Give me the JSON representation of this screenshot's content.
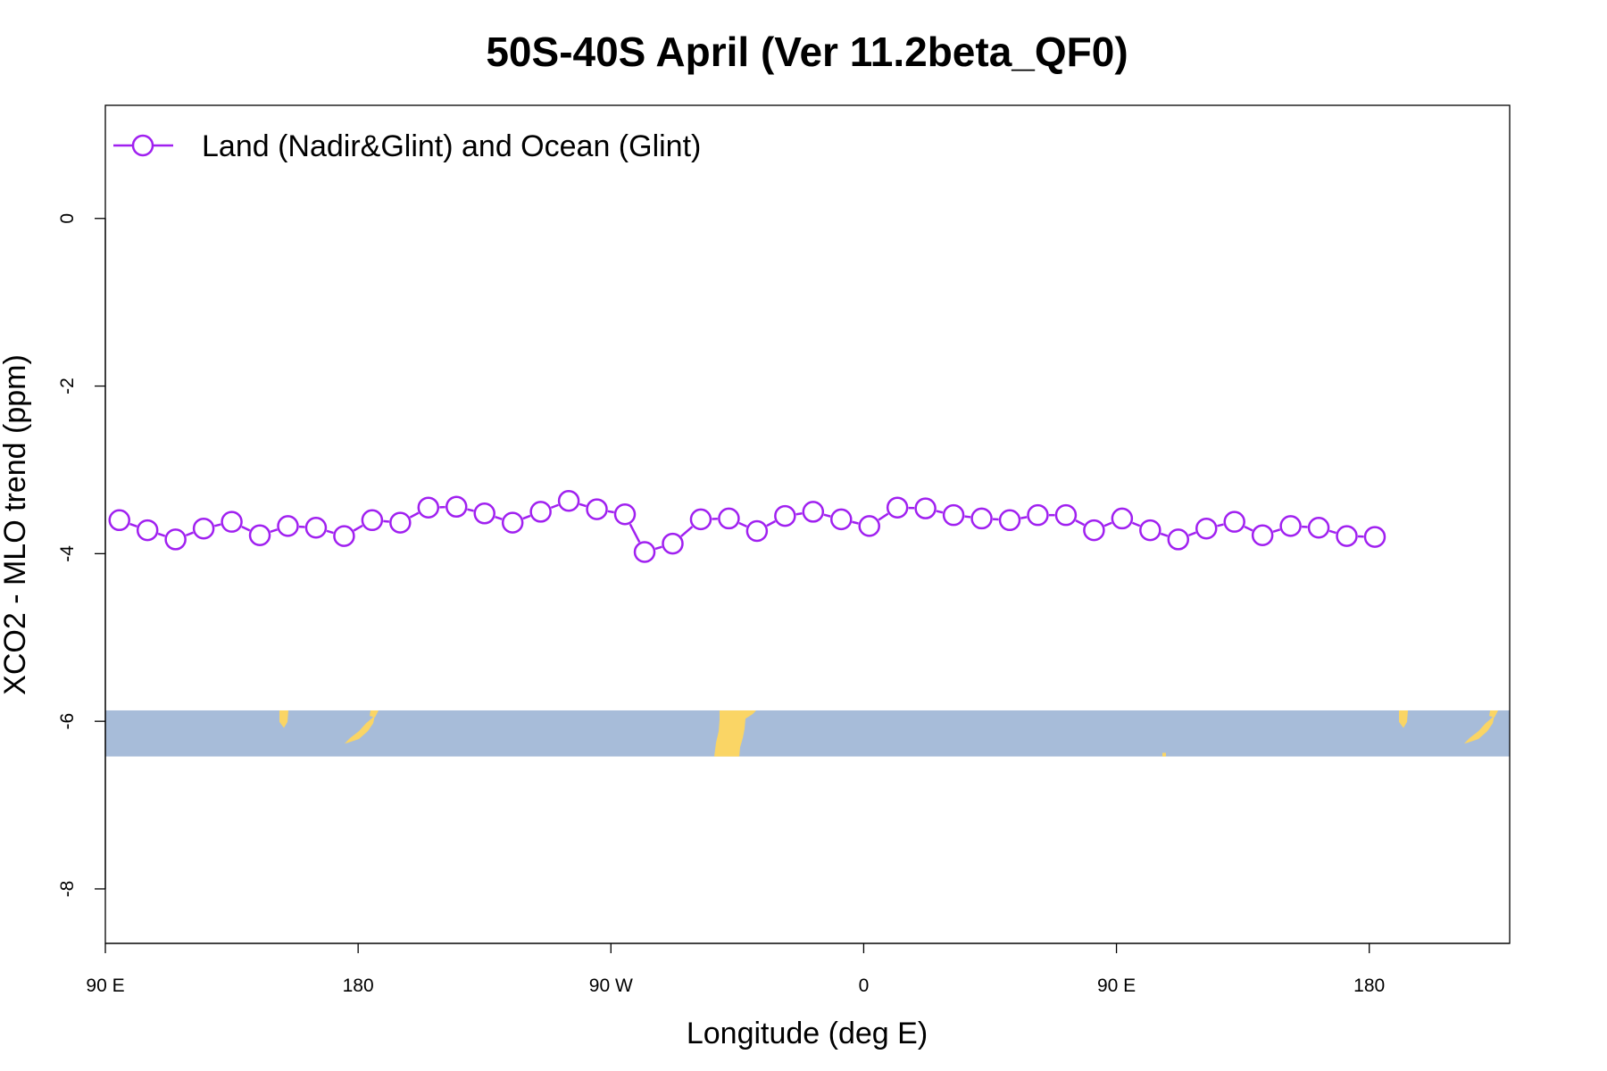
{
  "chart_data": {
    "type": "line",
    "title": "50S-40S April (Ver 11.2beta_QF0)",
    "xlabel": "Longitude (deg E)",
    "ylabel": "XCO2 - MLO trend (ppm)",
    "xlim": [
      90,
      590
    ],
    "ylim": [
      -8.65,
      1.35
    ],
    "x_ticks": [
      {
        "value": 90,
        "label": "90 E"
      },
      {
        "value": 180,
        "label": "180"
      },
      {
        "value": 270,
        "label": "90 W"
      },
      {
        "value": 360,
        "label": "0"
      },
      {
        "value": 450,
        "label": "90 E"
      },
      {
        "value": 540,
        "label": "180"
      }
    ],
    "y_ticks": [
      {
        "value": 0,
        "label": "0"
      },
      {
        "value": -2,
        "label": "-2"
      },
      {
        "value": -4,
        "label": "-4"
      },
      {
        "value": -6,
        "label": "-6"
      },
      {
        "value": -8,
        "label": "-8"
      }
    ],
    "grid": false,
    "legend_position": "top-left",
    "series": [
      {
        "name": "Land (Nadir&Glint) and Ocean (Glint)",
        "color": "#a020f0",
        "marker": "open-circle",
        "x": [
          95,
          105,
          115,
          125,
          135,
          145,
          155,
          165,
          175,
          185,
          195,
          205,
          215,
          225,
          235,
          245,
          255,
          265,
          275,
          282,
          292,
          302,
          312,
          322,
          332,
          342,
          352,
          362,
          372,
          382,
          392,
          402,
          412,
          422,
          432,
          442,
          452,
          462,
          472,
          482,
          492,
          502,
          512,
          522,
          532,
          542
        ],
        "y": [
          -3.6,
          -3.72,
          -3.83,
          -3.7,
          -3.62,
          -3.78,
          -3.67,
          -3.69,
          -3.79,
          -3.6,
          -3.63,
          -3.45,
          -3.44,
          -3.52,
          -3.63,
          -3.5,
          -3.37,
          -3.47,
          -3.53,
          -3.98,
          -3.88,
          -3.59,
          -3.58,
          -3.73,
          -3.55,
          -3.5,
          -3.59,
          -3.67,
          -3.45,
          -3.46,
          -3.54,
          -3.58,
          -3.6,
          -3.54,
          -3.54,
          -3.72,
          -3.58,
          -3.72,
          -3.83,
          -3.7,
          -3.62,
          -3.78,
          -3.67,
          -3.69,
          -3.79,
          -3.8
        ]
      }
    ],
    "map_strip": {
      "y_range": [
        -6.42,
        -5.87
      ],
      "ocean_color": "#a7bcd9",
      "land_color": "#fad565"
    }
  }
}
